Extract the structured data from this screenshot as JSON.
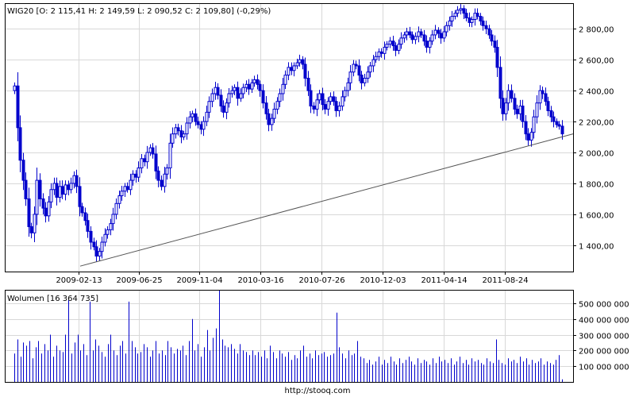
{
  "chart_data": [
    {
      "type": "candlestick",
      "title": "WIG20 [O: 2 115,41  H: 2 149,59  L: 2 090,52  C: 2 109,80] (-0,29%)",
      "x_ticks": [
        "2009-02-13",
        "2009-06-25",
        "2009-11-04",
        "2010-03-16",
        "2010-07-26",
        "2010-12-03",
        "2011-04-14",
        "2011-08-24"
      ],
      "y_ticks": [
        "1 400,00",
        "1 600,00",
        "1 800,00",
        "2 000,00",
        "2 200,00",
        "2 400,00",
        "2 600,00",
        "2 800,00"
      ],
      "ylim": [
        1230,
        2960
      ],
      "grid": true,
      "color": "#0000cc",
      "trendline": {
        "from": [
          "2009-02-13",
          1265
        ],
        "to": [
          "2011-11-30",
          2120
        ]
      },
      "close_series": [
        [
          0,
          2430
        ],
        [
          2,
          2160
        ],
        [
          4,
          1950
        ],
        [
          6,
          1820
        ],
        [
          7,
          1700
        ],
        [
          8,
          1520
        ],
        [
          9,
          1480
        ],
        [
          10,
          1600
        ],
        [
          11,
          1820
        ],
        [
          12,
          1700
        ],
        [
          13,
          1640
        ],
        [
          14,
          1590
        ],
        [
          15,
          1680
        ],
        [
          16,
          1760
        ],
        [
          17,
          1800
        ],
        [
          18,
          1710
        ],
        [
          19,
          1780
        ],
        [
          20,
          1730
        ],
        [
          21,
          1790
        ],
        [
          22,
          1760
        ],
        [
          23,
          1800
        ],
        [
          24,
          1850
        ],
        [
          25,
          1780
        ],
        [
          26,
          1650
        ],
        [
          27,
          1610
        ],
        [
          28,
          1560
        ],
        [
          29,
          1490
        ],
        [
          30,
          1420
        ],
        [
          31,
          1390
        ],
        [
          32,
          1330
        ],
        [
          33,
          1360
        ],
        [
          34,
          1420
        ],
        [
          35,
          1470
        ],
        [
          36,
          1500
        ],
        [
          37,
          1540
        ],
        [
          38,
          1600
        ],
        [
          39,
          1670
        ],
        [
          40,
          1720
        ],
        [
          41,
          1750
        ],
        [
          42,
          1780
        ],
        [
          43,
          1760
        ],
        [
          44,
          1820
        ],
        [
          45,
          1860
        ],
        [
          46,
          1840
        ],
        [
          47,
          1900
        ],
        [
          48,
          1960
        ],
        [
          49,
          1940
        ],
        [
          50,
          2000
        ],
        [
          51,
          2030
        ],
        [
          52,
          1990
        ],
        [
          53,
          1880
        ],
        [
          54,
          1820
        ],
        [
          55,
          1780
        ],
        [
          56,
          1860
        ],
        [
          57,
          1900
        ],
        [
          58,
          2060
        ],
        [
          59,
          2120
        ],
        [
          60,
          2160
        ],
        [
          61,
          2140
        ],
        [
          62,
          2100
        ],
        [
          63,
          2120
        ],
        [
          64,
          2190
        ],
        [
          65,
          2230
        ],
        [
          66,
          2250
        ],
        [
          67,
          2200
        ],
        [
          68,
          2180
        ],
        [
          69,
          2150
        ],
        [
          70,
          2200
        ],
        [
          71,
          2260
        ],
        [
          72,
          2330
        ],
        [
          73,
          2380
        ],
        [
          74,
          2420
        ],
        [
          75,
          2370
        ],
        [
          76,
          2300
        ],
        [
          77,
          2260
        ],
        [
          78,
          2320
        ],
        [
          79,
          2380
        ],
        [
          80,
          2400
        ],
        [
          81,
          2420
        ],
        [
          82,
          2350
        ],
        [
          83,
          2380
        ],
        [
          84,
          2420
        ],
        [
          85,
          2440
        ],
        [
          86,
          2410
        ],
        [
          87,
          2450
        ],
        [
          88,
          2470
        ],
        [
          89,
          2440
        ],
        [
          90,
          2400
        ],
        [
          91,
          2320
        ],
        [
          92,
          2250
        ],
        [
          93,
          2180
        ],
        [
          94,
          2220
        ],
        [
          95,
          2280
        ],
        [
          96,
          2330
        ],
        [
          97,
          2380
        ],
        [
          98,
          2440
        ],
        [
          99,
          2500
        ],
        [
          100,
          2550
        ],
        [
          101,
          2530
        ],
        [
          102,
          2560
        ],
        [
          103,
          2580
        ],
        [
          104,
          2600
        ],
        [
          105,
          2570
        ],
        [
          106,
          2480
        ],
        [
          107,
          2400
        ],
        [
          108,
          2300
        ],
        [
          109,
          2280
        ],
        [
          110,
          2340
        ],
        [
          111,
          2380
        ],
        [
          112,
          2310
        ],
        [
          113,
          2280
        ],
        [
          114,
          2330
        ],
        [
          115,
          2360
        ],
        [
          116,
          2330
        ],
        [
          117,
          2270
        ],
        [
          118,
          2300
        ],
        [
          119,
          2360
        ],
        [
          120,
          2400
        ],
        [
          121,
          2450
        ],
        [
          122,
          2520
        ],
        [
          123,
          2570
        ],
        [
          124,
          2560
        ],
        [
          125,
          2500
        ],
        [
          126,
          2450
        ],
        [
          127,
          2480
        ],
        [
          128,
          2520
        ],
        [
          129,
          2560
        ],
        [
          130,
          2600
        ],
        [
          131,
          2620
        ],
        [
          132,
          2650
        ],
        [
          133,
          2640
        ],
        [
          134,
          2680
        ],
        [
          135,
          2700
        ],
        [
          136,
          2720
        ],
        [
          137,
          2690
        ],
        [
          138,
          2660
        ],
        [
          139,
          2700
        ],
        [
          140,
          2740
        ],
        [
          141,
          2760
        ],
        [
          142,
          2780
        ],
        [
          143,
          2760
        ],
        [
          144,
          2730
        ],
        [
          145,
          2750
        ],
        [
          146,
          2780
        ],
        [
          147,
          2760
        ],
        [
          148,
          2720
        ],
        [
          149,
          2680
        ],
        [
          150,
          2720
        ],
        [
          151,
          2760
        ],
        [
          152,
          2790
        ],
        [
          153,
          2770
        ],
        [
          154,
          2740
        ],
        [
          155,
          2780
        ],
        [
          156,
          2820
        ],
        [
          157,
          2850
        ],
        [
          158,
          2880
        ],
        [
          159,
          2900
        ],
        [
          160,
          2920
        ],
        [
          161,
          2930
        ],
        [
          162,
          2900
        ],
        [
          163,
          2870
        ],
        [
          164,
          2840
        ],
        [
          165,
          2860
        ],
        [
          166,
          2900
        ],
        [
          167,
          2880
        ],
        [
          168,
          2850
        ],
        [
          169,
          2820
        ],
        [
          170,
          2800
        ],
        [
          171,
          2760
        ],
        [
          172,
          2720
        ],
        [
          173,
          2680
        ],
        [
          174,
          2550
        ],
        [
          175,
          2350
        ],
        [
          176,
          2250
        ],
        [
          177,
          2320
        ],
        [
          178,
          2400
        ],
        [
          179,
          2350
        ],
        [
          180,
          2280
        ],
        [
          181,
          2250
        ],
        [
          182,
          2300
        ],
        [
          183,
          2200
        ],
        [
          184,
          2120
        ],
        [
          185,
          2080
        ],
        [
          186,
          2130
        ],
        [
          187,
          2230
        ],
        [
          188,
          2320
        ],
        [
          189,
          2400
        ],
        [
          190,
          2380
        ],
        [
          191,
          2330
        ],
        [
          192,
          2270
        ],
        [
          193,
          2230
        ],
        [
          194,
          2200
        ],
        [
          195,
          2180
        ],
        [
          196,
          2170
        ],
        [
          197,
          2120
        ]
      ]
    },
    {
      "type": "bar",
      "title": "Wolumen [16 364 735]",
      "y_ticks": [
        "100 000 000",
        "200 000 000",
        "300 000 000",
        "400 000 000",
        "500 000 000"
      ],
      "ylim": [
        0,
        580000000
      ],
      "grid": true,
      "color": "#0000cc",
      "values": [
        180000000,
        270000000,
        160000000,
        250000000,
        230000000,
        260000000,
        150000000,
        220000000,
        260000000,
        180000000,
        240000000,
        200000000,
        300000000,
        160000000,
        230000000,
        200000000,
        190000000,
        300000000,
        520000000,
        180000000,
        250000000,
        300000000,
        200000000,
        240000000,
        170000000,
        510000000,
        200000000,
        270000000,
        230000000,
        190000000,
        160000000,
        240000000,
        300000000,
        200000000,
        170000000,
        230000000,
        260000000,
        180000000,
        510000000,
        260000000,
        220000000,
        180000000,
        190000000,
        240000000,
        220000000,
        160000000,
        200000000,
        260000000,
        180000000,
        200000000,
        170000000,
        260000000,
        220000000,
        180000000,
        210000000,
        200000000,
        230000000,
        170000000,
        260000000,
        400000000,
        200000000,
        240000000,
        160000000,
        220000000,
        330000000,
        200000000,
        280000000,
        340000000,
        580000000,
        270000000,
        230000000,
        220000000,
        240000000,
        210000000,
        180000000,
        240000000,
        200000000,
        190000000,
        170000000,
        200000000,
        170000000,
        190000000,
        160000000,
        200000000,
        150000000,
        230000000,
        190000000,
        150000000,
        200000000,
        180000000,
        160000000,
        190000000,
        140000000,
        170000000,
        150000000,
        200000000,
        230000000,
        160000000,
        180000000,
        150000000,
        200000000,
        170000000,
        180000000,
        190000000,
        160000000,
        170000000,
        180000000,
        440000000,
        220000000,
        180000000,
        150000000,
        200000000,
        170000000,
        180000000,
        260000000,
        160000000,
        150000000,
        120000000,
        140000000,
        110000000,
        130000000,
        160000000,
        110000000,
        140000000,
        120000000,
        160000000,
        130000000,
        110000000,
        150000000,
        120000000,
        140000000,
        160000000,
        130000000,
        110000000,
        150000000,
        120000000,
        140000000,
        130000000,
        110000000,
        150000000,
        120000000,
        160000000,
        130000000,
        140000000,
        120000000,
        150000000,
        110000000,
        130000000,
        160000000,
        120000000,
        140000000,
        110000000,
        150000000,
        130000000,
        140000000,
        120000000,
        110000000,
        150000000,
        130000000,
        120000000,
        270000000,
        140000000,
        120000000,
        110000000,
        150000000,
        130000000,
        140000000,
        120000000,
        160000000,
        130000000,
        150000000,
        110000000,
        140000000,
        120000000,
        130000000,
        150000000,
        110000000,
        130000000,
        120000000,
        110000000,
        140000000,
        170000000,
        16364735
      ]
    }
  ],
  "footer": {
    "url": "http://stooq.com"
  }
}
